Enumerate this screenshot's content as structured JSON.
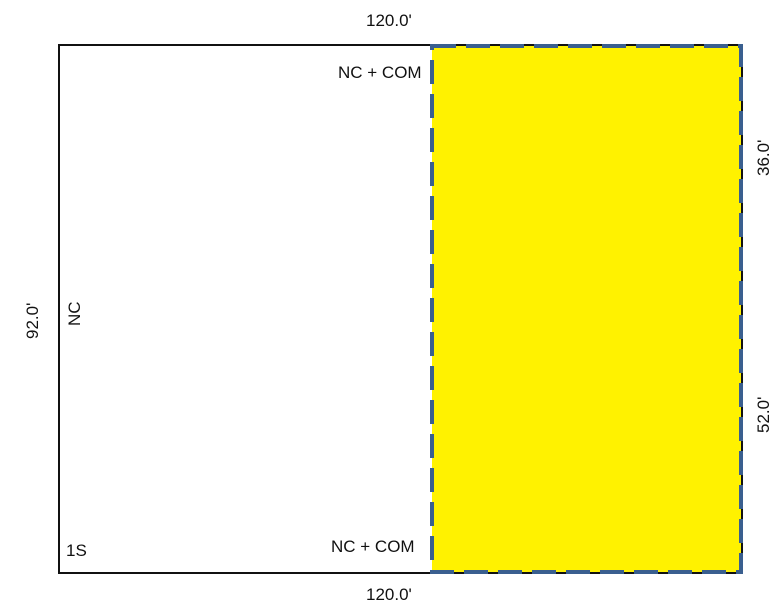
{
  "sketch": {
    "dimensions": {
      "top": "120.0'",
      "bottom": "120.0'",
      "left": "92.0'",
      "right_upper": "36.0'",
      "right_lower": "52.0'"
    },
    "areas": {
      "left_label": "NC",
      "corner_label": "1S",
      "top_label": "NC + COM",
      "bottom_label": "NC + COM"
    },
    "colors": {
      "outline": "#111111",
      "highlight_fill": "#fff200",
      "highlight_border": "#3a5f8f"
    }
  }
}
